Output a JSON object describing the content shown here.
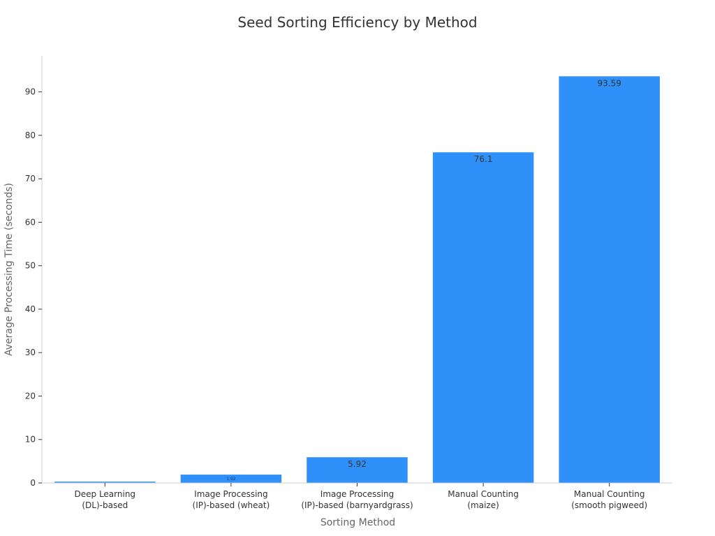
{
  "chart_data": {
    "type": "bar",
    "title": "Seed Sorting Efficiency by Method",
    "xlabel": "Sorting Method",
    "ylabel": "Average Processing Time (seconds)",
    "categories": [
      [
        "Deep Learning",
        "(DL)-based"
      ],
      [
        "Image Processing",
        "(IP)-based (wheat)"
      ],
      [
        "Image Processing",
        "(IP)-based (barnyardgrass)"
      ],
      [
        "Manual Counting",
        "(maize)"
      ],
      [
        "Manual Counting",
        "(smooth pigweed)"
      ]
    ],
    "values": [
      0.3,
      1.92,
      5.92,
      76.1,
      93.59
    ],
    "data_labels": [
      "",
      "1.92",
      "5.92",
      "76.1",
      "93.59"
    ],
    "ylim": [
      0,
      98.3
    ],
    "yticks": [
      0,
      10,
      20,
      30,
      40,
      50,
      60,
      70,
      80,
      90
    ],
    "bar_color": "#2e90f8",
    "grid": false,
    "legend": "none"
  }
}
